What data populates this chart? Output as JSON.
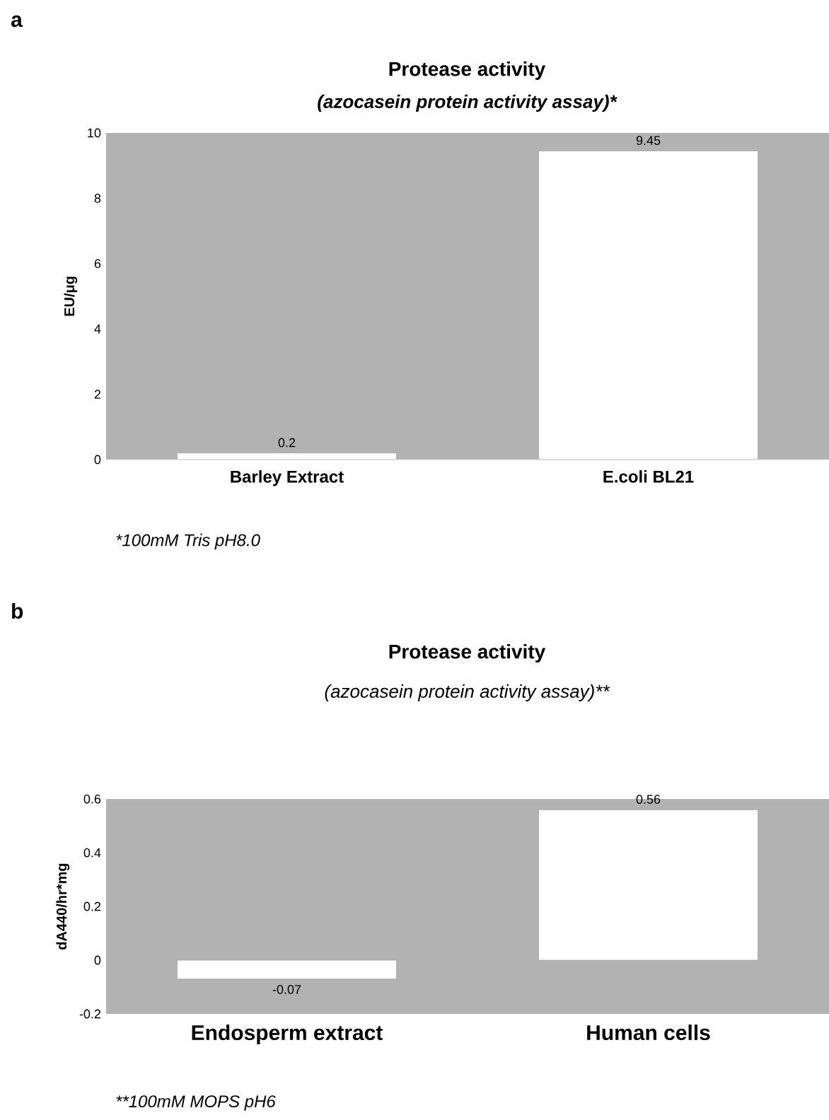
{
  "chart_data": [
    {
      "type": "bar",
      "title": "Protease activity",
      "subtitle": "(azocasein protein activity assay)*",
      "ylabel": "EU/μg",
      "categories": [
        "Barley Extract",
        "E.coli BL21"
      ],
      "values": [
        0.2,
        9.45
      ],
      "color": "#ffffff",
      "data_labels": true,
      "ylim": [
        0,
        10
      ],
      "yticks": [
        0,
        2,
        4,
        6,
        8,
        10
      ],
      "annotations": [
        "a",
        "*100mM Tris pH8.0"
      ]
    },
    {
      "type": "bar",
      "title": "Protease activity",
      "subtitle": "(azocasein protein activity assay)**",
      "ylabel": "dA440/hr*mg",
      "categories": [
        "Endosperm extract",
        "Human cells"
      ],
      "values": [
        -0.07,
        0.56
      ],
      "color": "#ffffff",
      "data_labels": true,
      "ylim": [
        -0.2,
        0.6
      ],
      "yticks": [
        -0.2,
        0,
        0.2,
        0.4,
        0.6
      ],
      "annotations": [
        "b",
        "**100mM MOPS pH6"
      ]
    }
  ]
}
